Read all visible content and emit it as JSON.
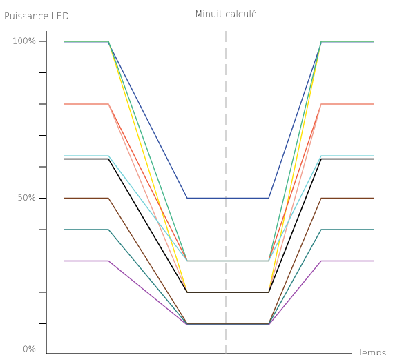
{
  "chart_data": {
    "type": "line",
    "ylabel": "Puissance LED",
    "xlabel": "Temps",
    "midnight_label": "Minuit calculé",
    "y_tick_labels": [
      {
        "value": 100,
        "text": "100%"
      },
      {
        "value": 50,
        "text": "50%"
      },
      {
        "value": 0,
        "text": "0%"
      }
    ],
    "y_minor_ticks": [
      10,
      20,
      30,
      40,
      50,
      60,
      70,
      80,
      90,
      100
    ],
    "ylim": [
      0,
      100
    ],
    "grid": false,
    "phases": [
      0,
      1,
      2,
      3,
      4,
      5
    ],
    "series": [
      {
        "color": "#ffe100",
        "values": [
          100,
          100,
          20,
          20,
          100,
          100
        ]
      },
      {
        "color": "#2f4fa0",
        "values": [
          99.5,
          99.5,
          50,
          50,
          99.5,
          99.5
        ]
      },
      {
        "color": "#44b58a",
        "values": [
          100,
          100,
          30,
          30,
          100,
          100
        ]
      },
      {
        "color": "#ef5a3c",
        "values": [
          80,
          80,
          30,
          30,
          80,
          80
        ]
      },
      {
        "color": "#f0a090",
        "values": [
          80,
          80,
          20,
          20,
          80,
          80
        ]
      },
      {
        "color": "#6fd0d8",
        "values": [
          63.5,
          63.5,
          30,
          30,
          63.5,
          63.5
        ]
      },
      {
        "color": "#000000",
        "values": [
          62.5,
          62.5,
          20,
          20,
          62.5,
          62.5
        ]
      },
      {
        "color": "#7a4020",
        "values": [
          50,
          50,
          10,
          10,
          50,
          50
        ]
      },
      {
        "color": "#2a8080",
        "values": [
          40,
          40,
          9.8,
          9.8,
          40,
          40
        ]
      },
      {
        "color": "#9a4aaa",
        "values": [
          30,
          30,
          9.6,
          9.6,
          30,
          30
        ]
      }
    ]
  }
}
